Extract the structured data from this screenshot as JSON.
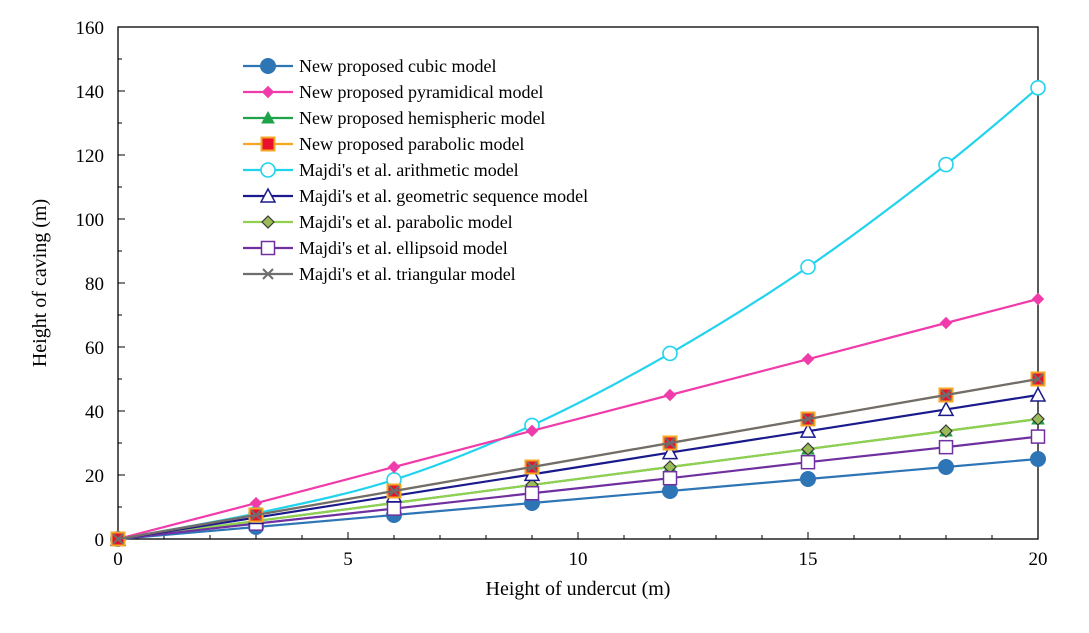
{
  "chart_data": {
    "type": "line",
    "title": "",
    "xlabel": "Height of undercut (m)",
    "ylabel": "Height of caving (m)",
    "xlim": [
      0,
      20
    ],
    "ylim": [
      0,
      160
    ],
    "xticks": [
      0,
      5,
      10,
      15,
      20
    ],
    "yticks": [
      0,
      20,
      40,
      60,
      80,
      100,
      120,
      140,
      160
    ],
    "x": [
      0,
      3,
      6,
      9,
      12,
      15,
      18,
      20
    ],
    "legend_position": "top-left",
    "grid": false,
    "series": [
      {
        "name": "New proposed cubic model",
        "color": "#2E75B6",
        "marker": "filled-circle",
        "values": [
          0,
          3.75,
          7.5,
          11.25,
          15,
          18.75,
          22.5,
          25
        ]
      },
      {
        "name": "New proposed pyramidical model",
        "color": "#F03CAA",
        "marker": "filled-diamond",
        "values": [
          0,
          11.2,
          22.5,
          33.8,
          45,
          56.2,
          67.5,
          75
        ]
      },
      {
        "name": "New proposed hemispheric model",
        "color": "#1FA34A",
        "marker": "filled-triangle",
        "values": [
          0,
          5.6,
          11.25,
          16.9,
          22.5,
          28.1,
          33.75,
          37.5
        ]
      },
      {
        "name": "New proposed parabolic model",
        "color": "#F5A623",
        "fill": "#E8102A",
        "marker": "filled-square",
        "values": [
          0,
          7.5,
          15,
          22.5,
          30,
          37.5,
          45,
          50
        ]
      },
      {
        "name": "Majdi's et al. arithmetic model",
        "color": "#22D3EE",
        "marker": "open-circle",
        "values": [
          0,
          8,
          18.5,
          35.5,
          58,
          85,
          117,
          141
        ]
      },
      {
        "name": "Majdi's et al. geometric sequence model",
        "color": "#1A1A8C",
        "marker": "open-triangle",
        "values": [
          0,
          6.7,
          13.5,
          20.2,
          27,
          33.7,
          40.5,
          45
        ]
      },
      {
        "name": "Majdi's et al. parabolic model",
        "color": "#92D050",
        "marker": "open-diamond",
        "values": [
          0,
          5.6,
          11.25,
          16.9,
          22.5,
          28.1,
          33.75,
          37.5
        ]
      },
      {
        "name": "Majdi's et al. ellipsoid model",
        "color": "#7030A0",
        "marker": "open-square",
        "values": [
          0,
          4.8,
          9.5,
          14.3,
          19,
          24,
          28.7,
          32
        ]
      },
      {
        "name": "Majdi's et al. triangular model",
        "color": "#6E6E6E",
        "marker": "x",
        "values": [
          0,
          7.5,
          15,
          22.5,
          30,
          37.5,
          45,
          50
        ]
      }
    ]
  }
}
